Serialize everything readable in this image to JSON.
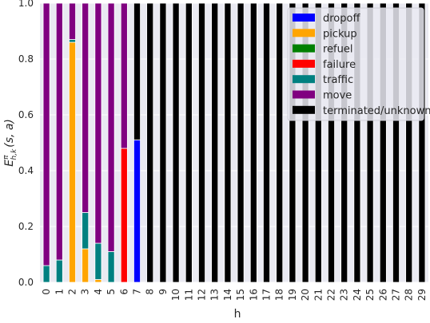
{
  "chart_data": {
    "type": "bar",
    "stacked": true,
    "xlabel": "h",
    "ylabel": "E",
    "ylabel_sup": "π",
    "ylabel_sub": "h,k",
    "ylabel_args": "(s, a)",
    "ylim": [
      0.0,
      1.0
    ],
    "yticks": [
      "0.0",
      "0.2",
      "0.4",
      "0.6",
      "0.8",
      "1.0"
    ],
    "ytick_values": [
      0.0,
      0.2,
      0.4,
      0.6,
      0.8,
      1.0
    ],
    "grid": true,
    "legend_position": "top-right",
    "categories": [
      "0",
      "1",
      "2",
      "3",
      "4",
      "5",
      "6",
      "7",
      "8",
      "9",
      "10",
      "11",
      "12",
      "13",
      "14",
      "15",
      "16",
      "17",
      "18",
      "19",
      "20",
      "21",
      "22",
      "23",
      "24",
      "25",
      "26",
      "27",
      "28",
      "29"
    ],
    "series": [
      {
        "name": "dropoff",
        "color": "#0000ff",
        "values": [
          0,
          0,
          0,
          0,
          0,
          0,
          0,
          0.51,
          0,
          0,
          0,
          0,
          0,
          0,
          0,
          0,
          0,
          0,
          0,
          0,
          0,
          0,
          0,
          0,
          0,
          0,
          0,
          0,
          0,
          0
        ]
      },
      {
        "name": "pickup",
        "color": "#ffa500",
        "values": [
          0,
          0,
          0.86,
          0.12,
          0.01,
          0,
          0,
          0,
          0,
          0,
          0,
          0,
          0,
          0,
          0,
          0,
          0,
          0,
          0,
          0,
          0,
          0,
          0,
          0,
          0,
          0,
          0,
          0,
          0,
          0
        ]
      },
      {
        "name": "refuel",
        "color": "#008000",
        "values": [
          0,
          0,
          0,
          0,
          0,
          0,
          0,
          0,
          0,
          0,
          0,
          0,
          0,
          0,
          0,
          0,
          0,
          0,
          0,
          0,
          0,
          0,
          0,
          0,
          0,
          0,
          0,
          0,
          0,
          0
        ]
      },
      {
        "name": "failure",
        "color": "#ff0000",
        "values": [
          0,
          0,
          0,
          0,
          0,
          0,
          0.48,
          0,
          0,
          0,
          0,
          0,
          0,
          0,
          0,
          0,
          0,
          0,
          0,
          0,
          0,
          0,
          0,
          0,
          0,
          0,
          0,
          0,
          0,
          0
        ]
      },
      {
        "name": "traffic",
        "color": "#008080",
        "values": [
          0.06,
          0.08,
          0.01,
          0.13,
          0.13,
          0.11,
          0,
          0,
          0,
          0,
          0,
          0,
          0,
          0,
          0,
          0,
          0,
          0,
          0,
          0,
          0,
          0,
          0,
          0,
          0,
          0,
          0,
          0,
          0,
          0
        ]
      },
      {
        "name": "move",
        "color": "#800080",
        "values": [
          0.94,
          0.92,
          0.13,
          0.75,
          0.86,
          0.89,
          0.52,
          0,
          0,
          0,
          0,
          0,
          0,
          0,
          0,
          0,
          0,
          0,
          0,
          0,
          0,
          0,
          0,
          0,
          0,
          0,
          0,
          0,
          0,
          0
        ]
      },
      {
        "name": "terminated/unknown",
        "color": "#000000",
        "values": [
          0,
          0,
          0,
          0,
          0,
          0,
          0,
          0.49,
          1,
          1,
          1,
          1,
          1,
          1,
          1,
          1,
          1,
          1,
          1,
          1,
          1,
          1,
          1,
          1,
          1,
          1,
          1,
          1,
          1,
          1
        ]
      }
    ]
  }
}
